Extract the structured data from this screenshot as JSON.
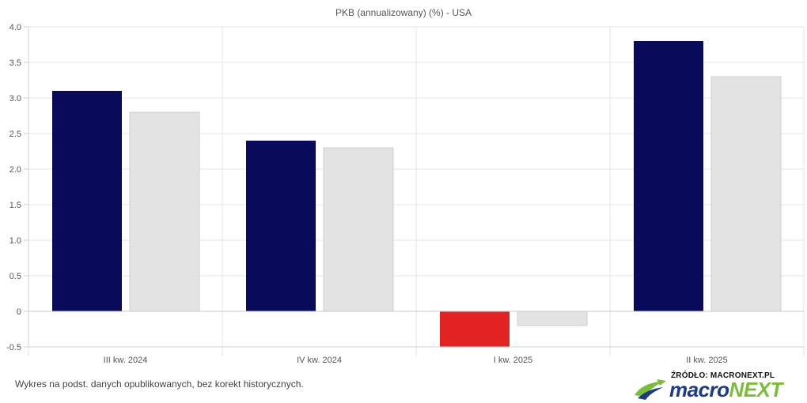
{
  "chart_data": {
    "type": "bar",
    "title": "PKB (annualizowany) (%) - USA",
    "categories": [
      "III kw. 2024",
      "IV kw. 2024",
      "I kw. 2025",
      "II kw. 2025"
    ],
    "series": [
      {
        "values": [
          3.1,
          2.4,
          -0.5,
          3.8
        ],
        "color": "#0a0a5a",
        "negative_color": "#e32222"
      },
      {
        "values": [
          2.8,
          2.3,
          -0.2,
          3.3
        ],
        "color": "#e3e3e3",
        "border": "#cfcfcf"
      }
    ],
    "ylim": [
      -0.5,
      4.0
    ],
    "yticks": [
      -0.5,
      0,
      0.5,
      1.0,
      1.5,
      2.0,
      2.5,
      3.0,
      3.5,
      4.0
    ],
    "ytick_labels": [
      "-0.5",
      "0",
      "0.5",
      "1.0",
      "1.5",
      "2.0",
      "2.5",
      "3.0",
      "3.5",
      "4.0"
    ],
    "grid": true,
    "xlabel": "",
    "ylabel": ""
  },
  "footnote": "Wykres na podst. danych opublikowanych, bez korekt historycznych.",
  "brand": {
    "source_label": "ŹRÓDŁO: MACRONEXT.PL",
    "logo_part1": "macro",
    "logo_part2": "NEXT",
    "colors": {
      "blue": "#1b3a87",
      "green": "#7cbd38"
    }
  }
}
